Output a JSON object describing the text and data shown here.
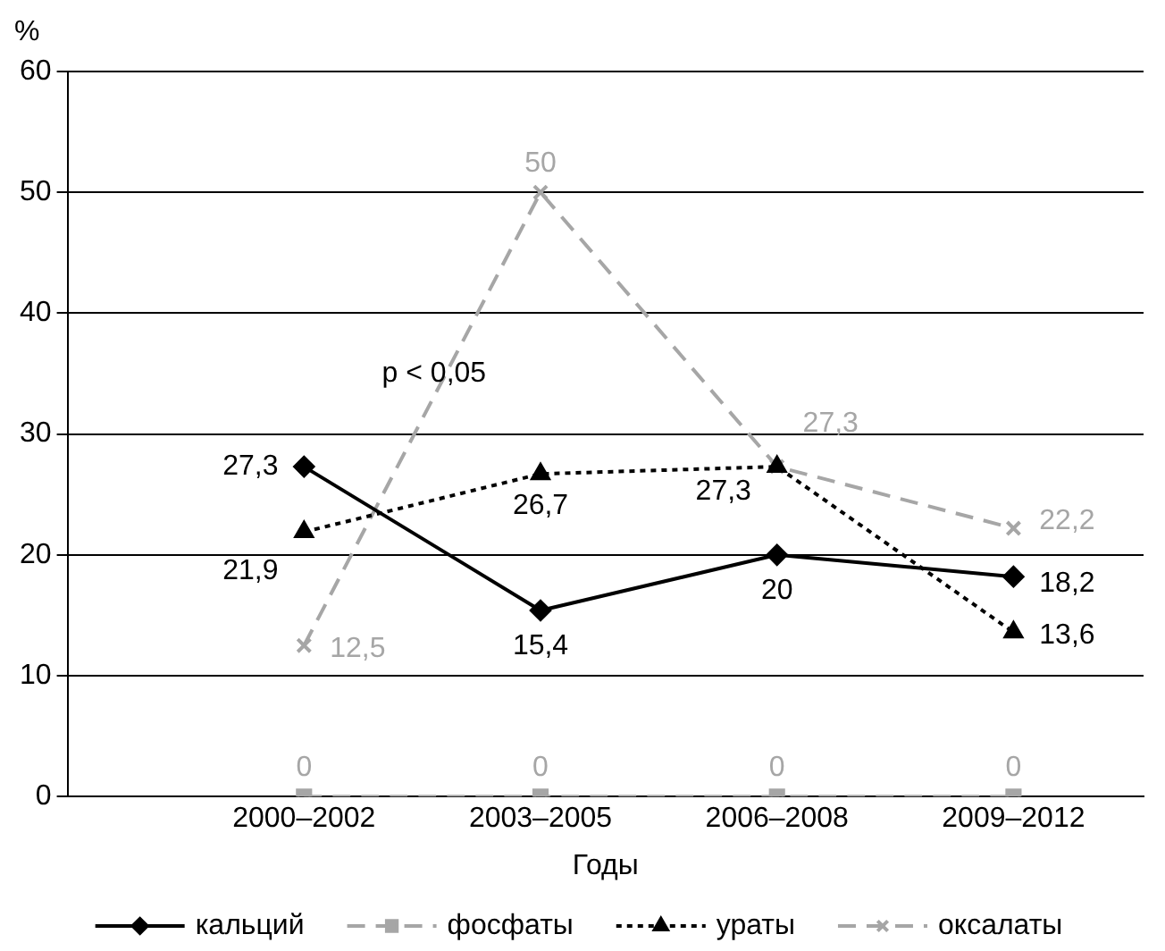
{
  "chart_data": {
    "type": "line",
    "xlabel": "Годы",
    "ylabel": "%",
    "categories": [
      "2000–2002",
      "2003–2005",
      "2006–2008",
      "2009–2012"
    ],
    "ylim": [
      0,
      60
    ],
    "yticks": [
      0,
      10,
      20,
      30,
      40,
      50,
      60
    ],
    "grid": "y",
    "legend": "bottom",
    "annotations": [
      "p < 0,05"
    ],
    "series": [
      {
        "name": "кальций",
        "color": "#000000",
        "line_style": "solid",
        "marker": "diamond",
        "values": [
          27.3,
          15.4,
          20,
          18.2
        ],
        "value_labels": [
          "27,3",
          "15,4",
          "20",
          "18,2"
        ]
      },
      {
        "name": "фосфаты",
        "color": "#a6a6a6",
        "line_style": "dashed",
        "marker": "square",
        "values": [
          0,
          0,
          0,
          0
        ],
        "value_labels": [
          "0",
          "0",
          "0",
          "0"
        ]
      },
      {
        "name": "ураты",
        "color": "#000000",
        "line_style": "dotted",
        "marker": "triangle",
        "values": [
          21.9,
          26.7,
          27.3,
          13.6
        ],
        "value_labels": [
          "21,9",
          "26,7",
          "27,3",
          "13,6"
        ]
      },
      {
        "name": "оксалаты",
        "color": "#a6a6a6",
        "line_style": "dashed",
        "marker": "cross",
        "values": [
          12.5,
          50,
          27.3,
          22.2
        ],
        "value_labels": [
          "12,5",
          "50",
          "27,3",
          "22,2"
        ]
      }
    ]
  }
}
